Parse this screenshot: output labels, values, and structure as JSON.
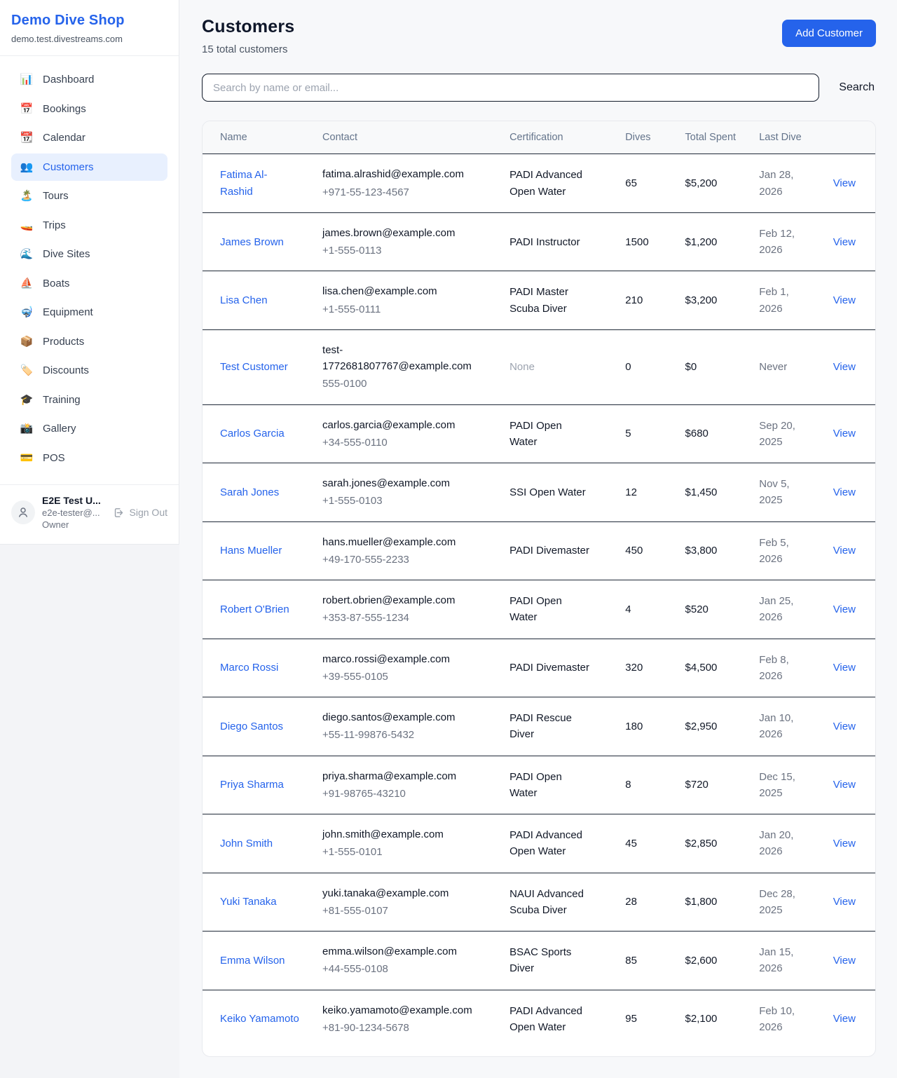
{
  "colors": {
    "accent": "#2563eb",
    "active_nav_bg": "#e8f0fe",
    "row_divider": "#1f2937",
    "muted_text": "#6b7280"
  },
  "sidebar": {
    "brand": {
      "name": "Demo Dive Shop",
      "domain": "demo.test.divestreams.com"
    },
    "nav": [
      {
        "id": "dashboard",
        "icon": "📊",
        "label": "Dashboard",
        "active": false
      },
      {
        "id": "bookings",
        "icon": "📅",
        "label": "Bookings",
        "active": false
      },
      {
        "id": "calendar",
        "icon": "📆",
        "label": "Calendar",
        "active": false
      },
      {
        "id": "customers",
        "icon": "👥",
        "label": "Customers",
        "active": true
      },
      {
        "id": "tours",
        "icon": "🏝️",
        "label": "Tours",
        "active": false
      },
      {
        "id": "trips",
        "icon": "🚤",
        "label": "Trips",
        "active": false
      },
      {
        "id": "dive-sites",
        "icon": "🌊",
        "label": "Dive Sites",
        "active": false
      },
      {
        "id": "boats",
        "icon": "⛵",
        "label": "Boats",
        "active": false
      },
      {
        "id": "equipment",
        "icon": "🤿",
        "label": "Equipment",
        "active": false
      },
      {
        "id": "products",
        "icon": "📦",
        "label": "Products",
        "active": false
      },
      {
        "id": "discounts",
        "icon": "🏷️",
        "label": "Discounts",
        "active": false
      },
      {
        "id": "training",
        "icon": "🎓",
        "label": "Training",
        "active": false
      },
      {
        "id": "gallery",
        "icon": "📸",
        "label": "Gallery",
        "active": false
      },
      {
        "id": "pos",
        "icon": "💳",
        "label": "POS",
        "active": false
      }
    ],
    "user": {
      "name": "E2E Test U...",
      "email": "e2e-tester@...",
      "role": "Owner",
      "sign_out_label": "Sign Out"
    }
  },
  "header": {
    "title": "Customers",
    "subtitle": "15 total customers",
    "add_button_label": "Add Customer"
  },
  "search": {
    "placeholder": "Search by name or email...",
    "button_label": "Search"
  },
  "table": {
    "columns": [
      "Name",
      "Contact",
      "Certification",
      "Dives",
      "Total Spent",
      "Last Dive",
      ""
    ],
    "view_label": "View",
    "rows": [
      {
        "name": "Fatima Al-Rashid",
        "email": "fatima.alrashid@example.com",
        "phone": "+971-55-123-4567",
        "certification": "PADI Advanced Open Water",
        "certification_muted": false,
        "dives": "65",
        "total_spent": "$5,200",
        "last_dive": "Jan 28, 2026"
      },
      {
        "name": "James Brown",
        "email": "james.brown@example.com",
        "phone": "+1-555-0113",
        "certification": "PADI Instructor",
        "certification_muted": false,
        "dives": "1500",
        "total_spent": "$1,200",
        "last_dive": "Feb 12, 2026"
      },
      {
        "name": "Lisa Chen",
        "email": "lisa.chen@example.com",
        "phone": "+1-555-0111",
        "certification": "PADI Master Scuba Diver",
        "certification_muted": false,
        "dives": "210",
        "total_spent": "$3,200",
        "last_dive": "Feb 1, 2026"
      },
      {
        "name": "Test Customer",
        "email": "test-1772681807767@example.com",
        "phone": "555-0100",
        "certification": "None",
        "certification_muted": true,
        "dives": "0",
        "total_spent": "$0",
        "last_dive": "Never"
      },
      {
        "name": "Carlos Garcia",
        "email": "carlos.garcia@example.com",
        "phone": "+34-555-0110",
        "certification": "PADI Open Water",
        "certification_muted": false,
        "dives": "5",
        "total_spent": "$680",
        "last_dive": "Sep 20, 2025"
      },
      {
        "name": "Sarah Jones",
        "email": "sarah.jones@example.com",
        "phone": "+1-555-0103",
        "certification": "SSI Open Water",
        "certification_muted": false,
        "dives": "12",
        "total_spent": "$1,450",
        "last_dive": "Nov 5, 2025"
      },
      {
        "name": "Hans Mueller",
        "email": "hans.mueller@example.com",
        "phone": "+49-170-555-2233",
        "certification": "PADI Divemaster",
        "certification_muted": false,
        "dives": "450",
        "total_spent": "$3,800",
        "last_dive": "Feb 5, 2026"
      },
      {
        "name": "Robert O'Brien",
        "email": "robert.obrien@example.com",
        "phone": "+353-87-555-1234",
        "certification": "PADI Open Water",
        "certification_muted": false,
        "dives": "4",
        "total_spent": "$520",
        "last_dive": "Jan 25, 2026"
      },
      {
        "name": "Marco Rossi",
        "email": "marco.rossi@example.com",
        "phone": "+39-555-0105",
        "certification": "PADI Divemaster",
        "certification_muted": false,
        "dives": "320",
        "total_spent": "$4,500",
        "last_dive": "Feb 8, 2026"
      },
      {
        "name": "Diego Santos",
        "email": "diego.santos@example.com",
        "phone": "+55-11-99876-5432",
        "certification": "PADI Rescue Diver",
        "certification_muted": false,
        "dives": "180",
        "total_spent": "$2,950",
        "last_dive": "Jan 10, 2026"
      },
      {
        "name": "Priya Sharma",
        "email": "priya.sharma@example.com",
        "phone": "+91-98765-43210",
        "certification": "PADI Open Water",
        "certification_muted": false,
        "dives": "8",
        "total_spent": "$720",
        "last_dive": "Dec 15, 2025"
      },
      {
        "name": "John Smith",
        "email": "john.smith@example.com",
        "phone": "+1-555-0101",
        "certification": "PADI Advanced Open Water",
        "certification_muted": false,
        "dives": "45",
        "total_spent": "$2,850",
        "last_dive": "Jan 20, 2026"
      },
      {
        "name": "Yuki Tanaka",
        "email": "yuki.tanaka@example.com",
        "phone": "+81-555-0107",
        "certification": "NAUI Advanced Scuba Diver",
        "certification_muted": false,
        "dives": "28",
        "total_spent": "$1,800",
        "last_dive": "Dec 28, 2025"
      },
      {
        "name": "Emma Wilson",
        "email": "emma.wilson@example.com",
        "phone": "+44-555-0108",
        "certification": "BSAC Sports Diver",
        "certification_muted": false,
        "dives": "85",
        "total_spent": "$2,600",
        "last_dive": "Jan 15, 2026"
      },
      {
        "name": "Keiko Yamamoto",
        "email": "keiko.yamamoto@example.com",
        "phone": "+81-90-1234-5678",
        "certification": "PADI Advanced Open Water",
        "certification_muted": false,
        "dives": "95",
        "total_spent": "$2,100",
        "last_dive": "Feb 10, 2026"
      }
    ]
  }
}
